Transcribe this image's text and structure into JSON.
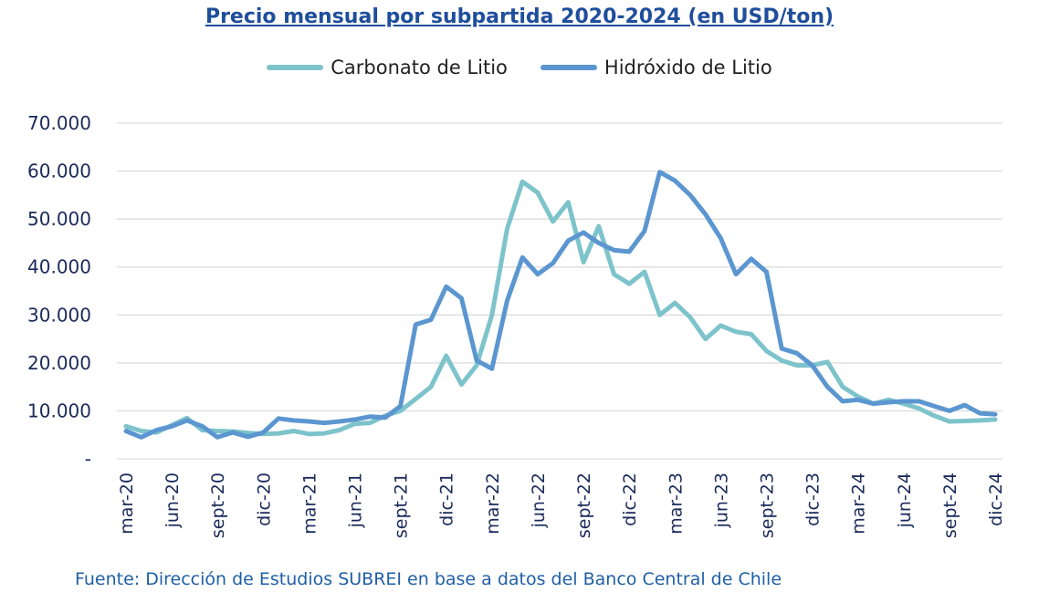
{
  "chart_data": {
    "type": "line",
    "title": "Precio mensual por subpartida 2020-2024 (en USD/ton)",
    "ylim": [
      0,
      70000
    ],
    "yticks": [
      {
        "value": 0,
        "label": "-"
      },
      {
        "value": 10000,
        "label": "10.000"
      },
      {
        "value": 20000,
        "label": "20.000"
      },
      {
        "value": 30000,
        "label": "30.000"
      },
      {
        "value": 40000,
        "label": "40.000"
      },
      {
        "value": 50000,
        "label": "50.000"
      },
      {
        "value": 60000,
        "label": "60.000"
      },
      {
        "value": 70000,
        "label": "70.000"
      }
    ],
    "grid": true,
    "legend_position": "top",
    "months": [
      "mar-20",
      "abr-20",
      "may-20",
      "jun-20",
      "jul-20",
      "ago-20",
      "sept-20",
      "oct-20",
      "nov-20",
      "dic-20",
      "ene-21",
      "feb-21",
      "mar-21",
      "abr-21",
      "may-21",
      "jun-21",
      "jul-21",
      "ago-21",
      "sept-21",
      "oct-21",
      "nov-21",
      "dic-21",
      "ene-22",
      "feb-22",
      "mar-22",
      "abr-22",
      "may-22",
      "jun-22",
      "jul-22",
      "ago-22",
      "sept-22",
      "oct-22",
      "nov-22",
      "dic-22",
      "ene-23",
      "feb-23",
      "mar-23",
      "abr-23",
      "may-23",
      "jun-23",
      "jul-23",
      "ago-23",
      "sept-23",
      "oct-23",
      "nov-23",
      "dic-23",
      "ene-24",
      "feb-24",
      "mar-24",
      "abr-24",
      "may-24",
      "jun-24",
      "jul-24",
      "ago-24",
      "sept-24",
      "oct-24",
      "nov-24",
      "dic-24"
    ],
    "xtick_labels": [
      {
        "index": 0,
        "label": "mar-20"
      },
      {
        "index": 3,
        "label": "jun-20"
      },
      {
        "index": 6,
        "label": "sept-20"
      },
      {
        "index": 9,
        "label": "dic-20"
      },
      {
        "index": 12,
        "label": "mar-21"
      },
      {
        "index": 15,
        "label": "jun-21"
      },
      {
        "index": 18,
        "label": "sept-21"
      },
      {
        "index": 21,
        "label": "dic-21"
      },
      {
        "index": 24,
        "label": "mar-22"
      },
      {
        "index": 27,
        "label": "jun-22"
      },
      {
        "index": 30,
        "label": "sept-22"
      },
      {
        "index": 33,
        "label": "dic-22"
      },
      {
        "index": 36,
        "label": "mar-23"
      },
      {
        "index": 39,
        "label": "jun-23"
      },
      {
        "index": 42,
        "label": "sept-23"
      },
      {
        "index": 45,
        "label": "dic-23"
      },
      {
        "index": 48,
        "label": "mar-24"
      },
      {
        "index": 51,
        "label": "jun-24"
      },
      {
        "index": 54,
        "label": "sept-24"
      },
      {
        "index": 57,
        "label": "dic-24"
      }
    ],
    "series": [
      {
        "name": "Carbonato de Litio",
        "color": "#7dc3cb",
        "values": [
          6800,
          5800,
          5500,
          7000,
          8500,
          6000,
          5800,
          5700,
          5400,
          5200,
          5300,
          5800,
          5200,
          5300,
          6000,
          7300,
          7500,
          9000,
          10000,
          12500,
          15000,
          21500,
          15500,
          19500,
          30000,
          48000,
          57800,
          55500,
          49500,
          53500,
          41000,
          48500,
          38500,
          36500,
          39000,
          30000,
          32500,
          29500,
          25000,
          27800,
          26500,
          26000,
          22500,
          20500,
          19500,
          19500,
          20200,
          15000,
          13000,
          11500,
          12300,
          11500,
          10500,
          9000,
          7800,
          7900,
          8000,
          8200
        ]
      },
      {
        "name": "Hidróxido de Litio",
        "color": "#5b96d0",
        "values": [
          5800,
          4500,
          6000,
          6800,
          8000,
          6800,
          4500,
          5500,
          4600,
          5500,
          8400,
          8000,
          7800,
          7500,
          7800,
          8200,
          8800,
          8600,
          11000,
          28000,
          29000,
          35900,
          33500,
          20500,
          18800,
          33000,
          42000,
          38500,
          40800,
          45500,
          47200,
          45000,
          43500,
          43200,
          47500,
          59800,
          58000,
          55000,
          51000,
          46000,
          38500,
          41700,
          39000,
          23000,
          22000,
          19500,
          15000,
          12000,
          12300,
          11500,
          11800,
          12000,
          12000,
          11000,
          10000,
          11200,
          9500,
          9300
        ]
      }
    ]
  },
  "source_text": "Fuente: Dirección de Estudios SUBREI en base a datos del Banco Central de Chile"
}
